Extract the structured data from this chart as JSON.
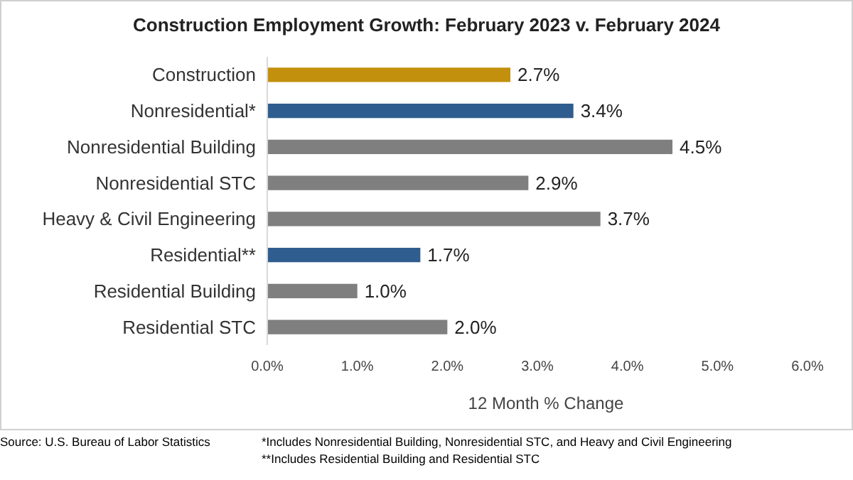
{
  "chart_data": {
    "type": "bar",
    "orientation": "horizontal",
    "title": "Construction Employment Growth: February 2023 v. February 2024",
    "xlabel": "12 Month % Change",
    "categories": [
      "Construction",
      "Nonresidential*",
      "Nonresidential Building",
      "Nonresidential STC",
      "Heavy & Civil Engineering",
      "Residential**",
      "Residential Building",
      "Residential STC"
    ],
    "values": [
      2.7,
      3.4,
      4.5,
      2.9,
      3.7,
      1.7,
      1.0,
      2.0
    ],
    "colors": [
      "#c3900e",
      "#2f5d8f",
      "#7f7f7f",
      "#7f7f7f",
      "#7f7f7f",
      "#2f5d8f",
      "#7f7f7f",
      "#7f7f7f"
    ],
    "value_labels": [
      "2.7%",
      "3.4%",
      "4.5%",
      "2.9%",
      "3.7%",
      "1.7%",
      "1.0%",
      "2.0%"
    ],
    "xlim": [
      0,
      6
    ],
    "xticks": [
      {
        "value": 0,
        "label": "0.0%"
      },
      {
        "value": 1,
        "label": "1.0%"
      },
      {
        "value": 2,
        "label": "2.0%"
      },
      {
        "value": 3,
        "label": "3.0%"
      },
      {
        "value": 4,
        "label": "4.0%"
      },
      {
        "value": 5,
        "label": "5.0%"
      },
      {
        "value": 6,
        "label": "6.0%"
      }
    ],
    "grid": false,
    "annotations": [
      "Source:  U.S. Bureau of Labor Statistics",
      "*Includes Nonresidential Building, Nonresidential STC, and Heavy and Civil Engineering",
      "**Includes Residential Building and Residential STC"
    ]
  }
}
